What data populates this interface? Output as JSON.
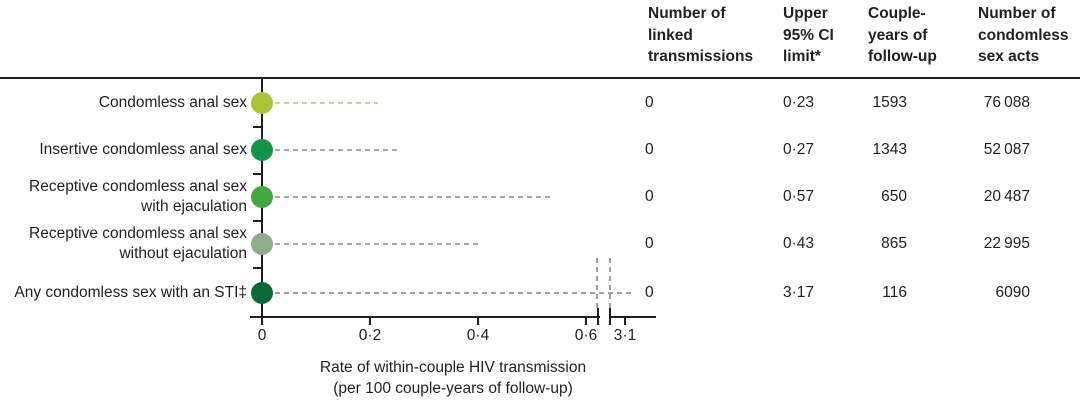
{
  "figure": {
    "columns": [
      {
        "label": "Number of\nlinked\ntransmissions"
      },
      {
        "label": "Upper\n95% CI\nlimit*"
      },
      {
        "label": "Couple-\nyears of\nfollow-up"
      },
      {
        "label": "Number of\ncondomless\nsex acts"
      }
    ],
    "xaxis": {
      "title_line1": "Rate of within-couple HIV transmission",
      "title_line2": "(per 100 couple-years of follow-up)",
      "tick_labels": [
        "0",
        "0·2",
        "0·4",
        "0·6",
        "3·1"
      ]
    }
  },
  "chart_data": {
    "type": "scatter",
    "subtype": "forest-dot-plot-with-table",
    "title": "",
    "xlabel": "Rate of within-couple HIV transmission (per 100 couple-years of follow-up)",
    "x_ticks": [
      0,
      0.2,
      0.4,
      0.6,
      3.1
    ],
    "axis_break": {
      "present": true,
      "between": [
        0.63,
        3.0
      ]
    },
    "legend": "none",
    "rows": [
      {
        "label": "Condomless anal sex",
        "point_estimate": 0,
        "upper_95_ci": 0.23,
        "display": {
          "linked": "0",
          "upper_ci": "0·23",
          "couple_years": "1593",
          "sex_acts": "76 088"
        },
        "dot_color": "#a9c43b",
        "dash_color": "#cdd193"
      },
      {
        "label": "Insertive condomless anal sex",
        "point_estimate": 0,
        "upper_95_ci": 0.27,
        "display": {
          "linked": "0",
          "upper_ci": "0·27",
          "couple_years": "1343",
          "sex_acts": "52 087"
        },
        "dot_color": "#149447",
        "dash_color": "#9fb0a2"
      },
      {
        "label": "Receptive condomless anal sex\nwith ejaculation",
        "point_estimate": 0,
        "upper_95_ci": 0.57,
        "display": {
          "linked": "0",
          "upper_ci": "0·57",
          "couple_years": "650",
          "sex_acts": "20 487"
        },
        "dot_color": "#43a63f",
        "dash_color": "#a6a9a2"
      },
      {
        "label": "Receptive condomless anal sex\nwithout ejaculation",
        "point_estimate": 0,
        "upper_95_ci": 0.43,
        "display": {
          "linked": "0",
          "upper_ci": "0·43",
          "couple_years": "865",
          "sex_acts": "22 995"
        },
        "dot_color": "#90aa8c",
        "dash_color": "#a4aea5"
      },
      {
        "label": "Any condomless sex with an STI‡",
        "point_estimate": 0,
        "upper_95_ci": 3.17,
        "display": {
          "linked": "0",
          "upper_ci": "3·17",
          "couple_years": "116",
          "sex_acts": "6090"
        },
        "dot_color": "#0b6a33",
        "dash_color": "#9aa39b"
      }
    ]
  }
}
